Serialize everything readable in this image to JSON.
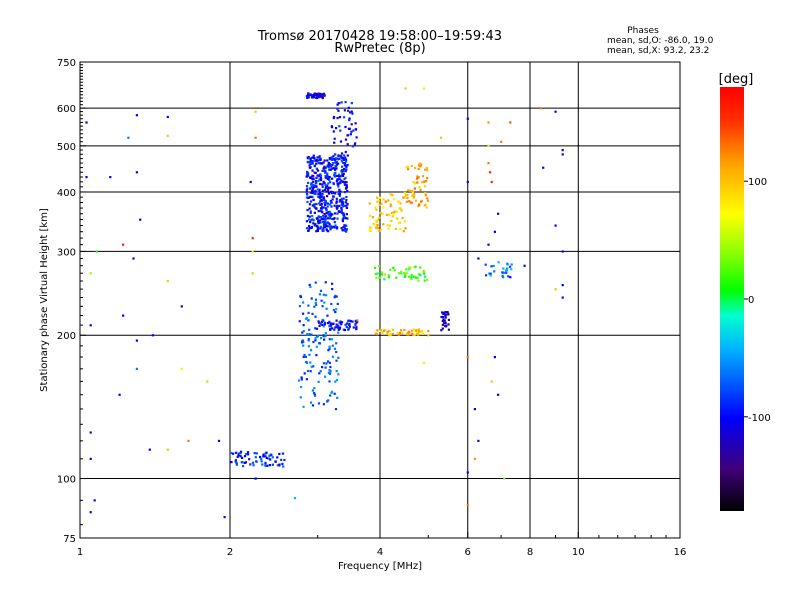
{
  "chart_data": {
    "type": "scatter",
    "title": "Tromsø 20170428 19:58:00–19:59:43",
    "subtitle": "RwPretec (8p)",
    "xlabel": "Frequency [MHz]",
    "ylabel": "Stationary phase Virtual Height [km]",
    "x_scale": "log",
    "y_scale": "log",
    "xlim": [
      1,
      16
    ],
    "ylim": [
      75,
      750
    ],
    "xticks": [
      1,
      2,
      4,
      6,
      8,
      10,
      16
    ],
    "yticks": [
      75,
      100,
      200,
      300,
      400,
      500,
      600,
      750
    ],
    "x_gridlines": [
      2,
      4,
      6,
      8,
      10
    ],
    "y_gridlines": [
      100,
      200,
      300,
      400,
      500,
      600
    ],
    "grid": true,
    "legend": {
      "title": "Phases",
      "line1": "mean, sd,O:  -86.0, 19.0",
      "line2": "mean, sd,X:  93.2, 23.2",
      "placement": "top-right"
    },
    "colorbar": {
      "label": "[deg]",
      "ticks": [
        100,
        0,
        -100
      ],
      "range": [
        -180,
        180
      ],
      "placement": "right"
    },
    "clusters": [
      {
        "x": [
          2.85,
          3.45
        ],
        "y": [
          330,
          480
        ],
        "phase": -95,
        "n": 520
      },
      {
        "x": [
          2.85,
          3.1
        ],
        "y": [
          630,
          645
        ],
        "phase": -110,
        "n": 60
      },
      {
        "x": [
          3.2,
          3.6
        ],
        "y": [
          480,
          620
        ],
        "phase": -100,
        "n": 50
      },
      {
        "x": [
          3.8,
          4.5
        ],
        "y": [
          330,
          400
        ],
        "phase": 95,
        "n": 70
      },
      {
        "x": [
          4.5,
          5.0
        ],
        "y": [
          370,
          460
        ],
        "phase": 110,
        "n": 60
      },
      {
        "x": [
          2.75,
          3.3
        ],
        "y": [
          140,
          260
        ],
        "phase": -70,
        "n": 150
      },
      {
        "x": [
          2.0,
          2.6
        ],
        "y": [
          106,
          114
        ],
        "phase": -90,
        "n": 70
      },
      {
        "x": [
          3.0,
          3.6
        ],
        "y": [
          205,
          215
        ],
        "phase": -100,
        "n": 60
      },
      {
        "x": [
          3.9,
          5.0
        ],
        "y": [
          200,
          206
        ],
        "phase": 100,
        "n": 50
      },
      {
        "x": [
          3.9,
          5.0
        ],
        "y": [
          260,
          280
        ],
        "phase": 20,
        "n": 50
      },
      {
        "x": [
          5.3,
          5.5
        ],
        "y": [
          205,
          225
        ],
        "phase": -120,
        "n": 30
      },
      {
        "x": [
          6.5,
          7.4
        ],
        "y": [
          265,
          285
        ],
        "phase": -60,
        "n": 25
      }
    ],
    "scatter_points": [
      {
        "x": 1.03,
        "y": 560,
        "phase": -100
      },
      {
        "x": 1.03,
        "y": 430,
        "phase": -110
      },
      {
        "x": 1.15,
        "y": 430,
        "phase": -100
      },
      {
        "x": 1.3,
        "y": 580,
        "phase": -100
      },
      {
        "x": 1.25,
        "y": 520,
        "phase": -60
      },
      {
        "x": 1.3,
        "y": 440,
        "phase": -100
      },
      {
        "x": 1.32,
        "y": 350,
        "phase": -100
      },
      {
        "x": 1.28,
        "y": 290,
        "phase": -100
      },
      {
        "x": 1.08,
        "y": 300,
        "phase": 10
      },
      {
        "x": 1.22,
        "y": 310,
        "phase": 160
      },
      {
        "x": 1.05,
        "y": 270,
        "phase": 40
      },
      {
        "x": 1.05,
        "y": 210,
        "phase": -100
      },
      {
        "x": 1.22,
        "y": 220,
        "phase": -100
      },
      {
        "x": 1.3,
        "y": 195,
        "phase": -100
      },
      {
        "x": 1.4,
        "y": 200,
        "phase": -100
      },
      {
        "x": 1.3,
        "y": 170,
        "phase": -60
      },
      {
        "x": 1.2,
        "y": 150,
        "phase": -100
      },
      {
        "x": 1.05,
        "y": 125,
        "phase": -100
      },
      {
        "x": 1.05,
        "y": 110,
        "phase": -100
      },
      {
        "x": 1.38,
        "y": 115,
        "phase": -100
      },
      {
        "x": 1.5,
        "y": 575,
        "phase": -100
      },
      {
        "x": 1.5,
        "y": 525,
        "phase": 100
      },
      {
        "x": 1.5,
        "y": 260,
        "phase": 100
      },
      {
        "x": 1.6,
        "y": 230,
        "phase": -100
      },
      {
        "x": 1.6,
        "y": 170,
        "phase": 80
      },
      {
        "x": 1.5,
        "y": 115,
        "phase": 100
      },
      {
        "x": 1.65,
        "y": 120,
        "phase": 130
      },
      {
        "x": 1.8,
        "y": 160,
        "phase": 40
      },
      {
        "x": 1.9,
        "y": 120,
        "phase": -100
      },
      {
        "x": 2.25,
        "y": 590,
        "phase": 100
      },
      {
        "x": 2.25,
        "y": 520,
        "phase": 130
      },
      {
        "x": 2.2,
        "y": 420,
        "phase": -100
      },
      {
        "x": 2.22,
        "y": 320,
        "phase": 160
      },
      {
        "x": 2.22,
        "y": 300,
        "phase": 60
      },
      {
        "x": 2.22,
        "y": 270,
        "phase": 40
      },
      {
        "x": 1.07,
        "y": 90,
        "phase": -100
      },
      {
        "x": 1.05,
        "y": 85,
        "phase": -100
      },
      {
        "x": 1.95,
        "y": 83,
        "phase": -100
      },
      {
        "x": 2.7,
        "y": 91,
        "phase": -40
      },
      {
        "x": 2.25,
        "y": 100,
        "phase": -100
      },
      {
        "x": 4.9,
        "y": 660,
        "phase": 60
      },
      {
        "x": 4.5,
        "y": 660,
        "phase": 100
      },
      {
        "x": 6.0,
        "y": 570,
        "phase": -100
      },
      {
        "x": 6.6,
        "y": 560,
        "phase": 120
      },
      {
        "x": 6.6,
        "y": 500,
        "phase": 60
      },
      {
        "x": 6.6,
        "y": 460,
        "phase": 130
      },
      {
        "x": 6.65,
        "y": 440,
        "phase": 160
      },
      {
        "x": 6.7,
        "y": 420,
        "phase": 160
      },
      {
        "x": 6.0,
        "y": 420,
        "phase": -100
      },
      {
        "x": 7.3,
        "y": 560,
        "phase": 140
      },
      {
        "x": 7.0,
        "y": 510,
        "phase": 130
      },
      {
        "x": 6.9,
        "y": 360,
        "phase": -100
      },
      {
        "x": 6.8,
        "y": 330,
        "phase": -100
      },
      {
        "x": 6.6,
        "y": 310,
        "phase": -100
      },
      {
        "x": 8.4,
        "y": 600,
        "phase": 130
      },
      {
        "x": 9.0,
        "y": 590,
        "phase": -100
      },
      {
        "x": 9.3,
        "y": 490,
        "phase": -100
      },
      {
        "x": 9.3,
        "y": 480,
        "phase": -100
      },
      {
        "x": 8.5,
        "y": 450,
        "phase": -100
      },
      {
        "x": 9.0,
        "y": 340,
        "phase": -100
      },
      {
        "x": 9.3,
        "y": 300,
        "phase": -100
      },
      {
        "x": 9.0,
        "y": 250,
        "phase": 100
      },
      {
        "x": 9.3,
        "y": 255,
        "phase": -100
      },
      {
        "x": 9.3,
        "y": 240,
        "phase": -100
      },
      {
        "x": 7.8,
        "y": 280,
        "phase": -100
      },
      {
        "x": 7.3,
        "y": 265,
        "phase": -100
      },
      {
        "x": 6.3,
        "y": 290,
        "phase": -100
      },
      {
        "x": 6.8,
        "y": 180,
        "phase": -100
      },
      {
        "x": 6.7,
        "y": 160,
        "phase": 100
      },
      {
        "x": 6.9,
        "y": 150,
        "phase": -100
      },
      {
        "x": 6.0,
        "y": 180,
        "phase": 130
      },
      {
        "x": 6.2,
        "y": 140,
        "phase": -100
      },
      {
        "x": 6.3,
        "y": 120,
        "phase": -100
      },
      {
        "x": 6.2,
        "y": 110,
        "phase": 120
      },
      {
        "x": 6.0,
        "y": 103,
        "phase": -100
      },
      {
        "x": 7.1,
        "y": 100,
        "phase": 40
      },
      {
        "x": 6.0,
        "y": 88,
        "phase": 130
      },
      {
        "x": 5.3,
        "y": 520,
        "phase": 100
      },
      {
        "x": 5.0,
        "y": 200,
        "phase": 100
      },
      {
        "x": 3.6,
        "y": 215,
        "phase": 130
      },
      {
        "x": 4.9,
        "y": 175,
        "phase": 80
      }
    ]
  }
}
